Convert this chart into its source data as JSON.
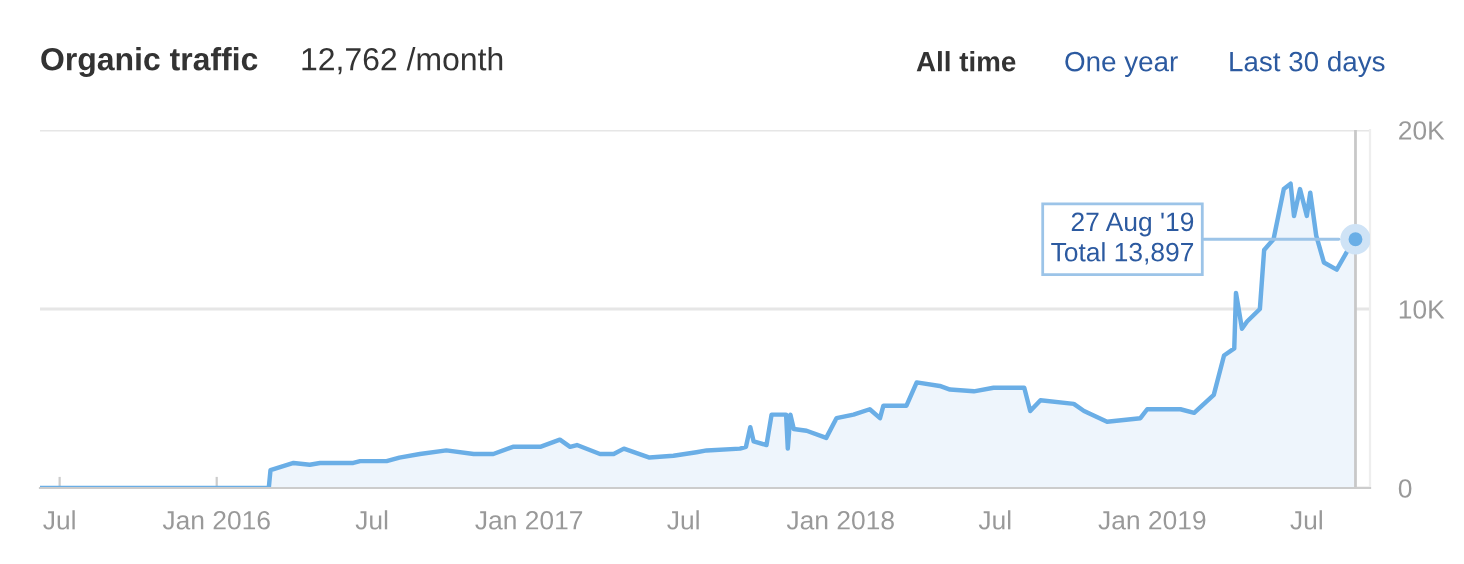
{
  "chart_data": {
    "type": "area",
    "title": "Organic traffic",
    "subtitle": "12,762 /month",
    "annotations": [
      "All time",
      "One year",
      "Last 30 days",
      {
        "text": "27 Aug '19\nTotal 13,897",
        "x": "2019-08-27",
        "y": 13897
      }
    ],
    "x": [
      "2015-06-08",
      "2016-03-02",
      "2016-03-04",
      "2016-03-31",
      "2016-04-19",
      "2016-05-01",
      "2016-06-09",
      "2016-06-17",
      "2016-07-18",
      "2016-08-02",
      "2016-08-26",
      "2016-09-26",
      "2016-10-28",
      "2016-11-20",
      "2016-12-13",
      "2017-01-14",
      "2017-02-06",
      "2017-02-18",
      "2017-02-26",
      "2017-03-25",
      "2017-04-10",
      "2017-04-22",
      "2017-05-22",
      "2017-06-19",
      "2017-07-16",
      "2017-07-28",
      "2017-09-05",
      "2017-09-12",
      "2017-09-17",
      "2017-09-21",
      "2017-10-06",
      "2017-10-12",
      "2017-10-29",
      "2017-10-31",
      "2017-11-03",
      "2017-11-07",
      "2017-11-22",
      "2017-12-15",
      "2017-12-27",
      "2018-01-16",
      "2018-02-04",
      "2018-02-16",
      "2018-02-20",
      "2018-03-19",
      "2018-03-31",
      "2018-04-27",
      "2018-05-09",
      "2018-06-06",
      "2018-06-29",
      "2018-08-04",
      "2018-08-11",
      "2018-08-23",
      "2018-10-01",
      "2018-10-13",
      "2018-11-09",
      "2018-12-18",
      "2018-12-26",
      "2019-02-03",
      "2019-02-19",
      "2019-03-14",
      "2019-03-26",
      "2019-04-07",
      "2019-04-09",
      "2019-04-16",
      "2019-04-22",
      "2019-05-07",
      "2019-05-12",
      "2019-05-23",
      "2019-06-04",
      "2019-06-12",
      "2019-06-16",
      "2019-06-23",
      "2019-07-01",
      "2019-07-05",
      "2019-07-12",
      "2019-07-21",
      "2019-08-05",
      "2019-08-17",
      "2019-08-27"
    ],
    "series": [
      {
        "color": "#6aaee6",
        "values": [
          0,
          0,
          1000,
          1400,
          1300,
          1400,
          1400,
          1500,
          1500,
          1700,
          1900,
          2100,
          1900,
          1900,
          2300,
          2300,
          2700,
          2300,
          2400,
          1900,
          1900,
          2200,
          1700,
          1800,
          2000,
          2100,
          2200,
          2300,
          3400,
          2600,
          2400,
          4100,
          4100,
          2200,
          4100,
          3300,
          3200,
          2800,
          3900,
          4100,
          4400,
          3900,
          4600,
          4600,
          5900,
          5700,
          5500,
          5400,
          5600,
          5600,
          4300,
          4900,
          4700,
          4300,
          3700,
          3900,
          4400,
          4400,
          4200,
          5200,
          7400,
          7800,
          10900,
          8900,
          9300,
          10000,
          13300,
          13900,
          16700,
          17000,
          15200,
          16700,
          15200,
          16500,
          14100,
          12600,
          12200,
          13200,
          13897
        ]
      }
    ],
    "xlim": [
      "2015-06-08",
      "2019-09-13"
    ],
    "xticks": [
      {
        "value": "2015-07-01",
        "label": "Jul"
      },
      {
        "value": "2016-01-01",
        "label": "Jan 2016"
      },
      {
        "value": "2016-07-01",
        "label": "Jul"
      },
      {
        "value": "2017-01-01",
        "label": "Jan 2017"
      },
      {
        "value": "2017-07-01",
        "label": "Jul"
      },
      {
        "value": "2018-01-01",
        "label": "Jan 2018"
      },
      {
        "value": "2018-07-01",
        "label": "Jul"
      },
      {
        "value": "2019-01-01",
        "label": "Jan 2019"
      },
      {
        "value": "2019-07-01",
        "label": "Jul"
      }
    ],
    "ylim": [
      0,
      20000
    ],
    "yticks": [
      0,
      {
        "value": 10000,
        "label": "10K"
      },
      {
        "value": 20000,
        "label": "20K"
      }
    ],
    "ref_lines": [
      {
        "axis": "x",
        "value": "2019-08-27",
        "label": null,
        "color": "#c8c8c8"
      }
    ],
    "grid": "y",
    "marker": "none",
    "line_style": "solid"
  }
}
